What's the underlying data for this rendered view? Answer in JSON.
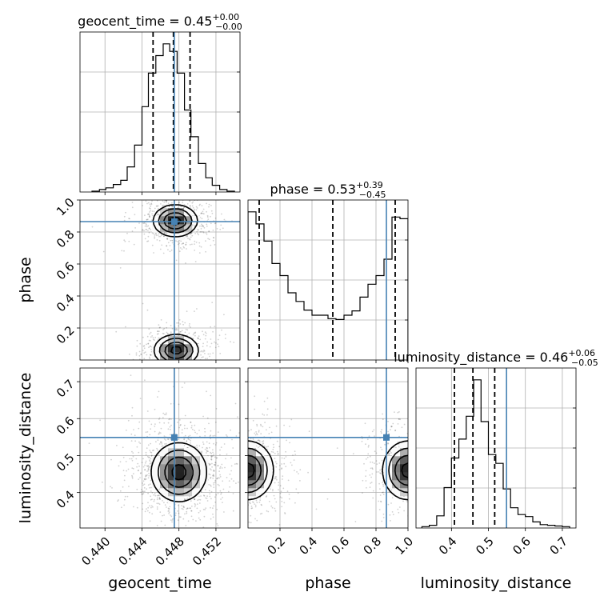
{
  "chart_data": {
    "type": "corner",
    "parameters": [
      "geocent_time",
      "phase",
      "luminosity_distance"
    ],
    "axis_labels": [
      "geocent_time",
      "phase",
      "luminosity_distance"
    ],
    "injection": {
      "geocent_time": 0.4475,
      "phase": 0.865,
      "luminosity_distance": 0.549
    },
    "colors": {
      "truth": "#4682b4",
      "grid": "#b0b0b0",
      "line": "#000000"
    },
    "axes": {
      "geocent_time": {
        "range": [
          0.4373,
          0.4546
        ],
        "ticks": [
          0.44,
          0.444,
          0.448,
          0.452
        ],
        "tick_labels": [
          "0.440",
          "0.444",
          "0.448",
          "0.452"
        ]
      },
      "phase": {
        "range": [
          0.0,
          1.0
        ],
        "ticks": [
          0.2,
          0.4,
          0.6,
          0.8,
          1.0
        ],
        "tick_labels": [
          "0.2",
          "0.4",
          "0.6",
          "0.8",
          "1.0"
        ]
      },
      "luminosity_distance": {
        "range": [
          0.304,
          0.737
        ],
        "ticks": [
          0.4,
          0.5,
          0.6,
          0.7
        ],
        "tick_labels": [
          "0.4",
          "0.5",
          "0.6",
          "0.7"
        ]
      }
    },
    "diagonal": [
      {
        "parameter": "geocent_time",
        "title_prefix": "geocent_time = ",
        "median": "0.45",
        "plus": "+0.00",
        "minus": "−0.00",
        "quantiles": [
          0.4452,
          0.4474,
          0.4492
        ],
        "bin_edges": [
          0.4386,
          0.4394,
          0.4401,
          0.4409,
          0.4417,
          0.4424,
          0.4432,
          0.444,
          0.4447,
          0.4455,
          0.4463,
          0.447,
          0.4478,
          0.4486,
          0.4493,
          0.4501,
          0.4509,
          0.4516,
          0.4524,
          0.4532,
          0.454
        ],
        "counts": [
          1,
          3,
          5,
          9,
          14,
          30,
          56,
          102,
          142,
          163,
          177,
          168,
          142,
          98,
          66,
          34,
          17,
          8,
          3,
          1
        ]
      },
      {
        "parameter": "phase",
        "title_prefix": "phase = ",
        "median": "0.53",
        "plus": "+0.39",
        "minus": "−0.45",
        "quantiles": [
          0.07,
          0.53,
          0.92
        ],
        "bin_edges": [
          0.0,
          0.05,
          0.1,
          0.15,
          0.2,
          0.25,
          0.3,
          0.35,
          0.4,
          0.45,
          0.5,
          0.55,
          0.6,
          0.65,
          0.7,
          0.75,
          0.8,
          0.85,
          0.9,
          0.95,
          1.0
        ],
        "counts": [
          172,
          158,
          138,
          112,
          98,
          78,
          68,
          58,
          52,
          52,
          48,
          47,
          52,
          57,
          73,
          88,
          98,
          117,
          166,
          164
        ]
      },
      {
        "parameter": "luminosity_distance",
        "title_prefix": "luminosity_distance = ",
        "median": "0.46",
        "plus": "+0.06",
        "minus": "−0.05",
        "quantiles": [
          0.408,
          0.458,
          0.517
        ],
        "bin_edges": [
          0.32,
          0.34,
          0.36,
          0.38,
          0.4,
          0.42,
          0.44,
          0.46,
          0.48,
          0.5,
          0.52,
          0.54,
          0.56,
          0.58,
          0.6,
          0.62,
          0.64,
          0.66,
          0.68,
          0.7,
          0.72
        ],
        "counts": [
          2,
          4,
          18,
          60,
          104,
          132,
          166,
          220,
          158,
          109,
          96,
          58,
          30,
          20,
          17,
          9,
          5,
          4,
          3,
          2
        ]
      }
    ],
    "joint": [
      {
        "x": "geocent_time",
        "y": "phase",
        "modes": [
          {
            "x": 0.4476,
            "y": 0.87,
            "sx": 0.0012,
            "sy": 0.05
          },
          {
            "x": 0.4477,
            "y": 0.06,
            "sx": 0.0012,
            "sy": 0.05
          }
        ]
      },
      {
        "x": "geocent_time",
        "y": "luminosity_distance",
        "modes": [
          {
            "x": 0.448,
            "y": 0.455,
            "sx": 0.0015,
            "sy": 0.04
          }
        ]
      },
      {
        "x": "phase",
        "y": "luminosity_distance",
        "modes": [
          {
            "x": 0.0,
            "y": 0.46,
            "sx": 0.08,
            "sy": 0.04
          },
          {
            "x": 1.0,
            "y": 0.46,
            "sx": 0.08,
            "sy": 0.04
          }
        ]
      }
    ]
  }
}
